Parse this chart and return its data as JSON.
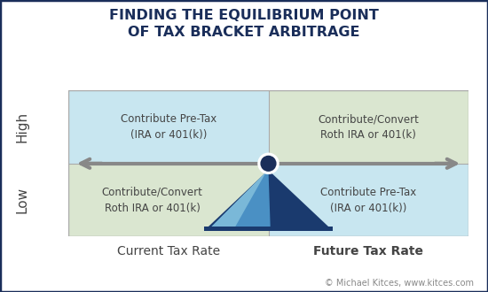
{
  "title_line1": "FINDING THE EQUILIBRIUM POINT",
  "title_line2": "OF TAX BRACKET ARBITRAGE",
  "title_color": "#1a2e5a",
  "title_fontsize": 11.5,
  "bg_color": "#ffffff",
  "border_color": "#1a2e5a",
  "border_lw": 2.5,
  "quadrant_top_left_color": "#c8e6f0",
  "quadrant_top_right_color": "#dae6d0",
  "quadrant_bot_left_color": "#dae6d0",
  "quadrant_bot_right_color": "#c8e6f0",
  "divider_color": "#aaaaaa",
  "arrow_color": "#888888",
  "arrow_lw": 3.0,
  "xlabel_left": "Current Tax Rate",
  "xlabel_right": "Future Tax Rate",
  "ylabel_top": "High",
  "ylabel_bot": "Low",
  "text_top_left": "Contribute Pre-Tax\n(IRA or 401(k))",
  "text_top_right": "Contribute/Convert\nRoth IRA or 401(k)",
  "text_bot_left": "Contribute/Convert\nRoth IRA or 401(k)",
  "text_bot_right": "Contribute Pre-Tax\n(IRA or 401(k))",
  "text_color": "#444444",
  "text_fontsize": 8.5,
  "circle_outer_color": "#ffffff",
  "circle_inner_color": "#1a2e5a",
  "fulcrum_dark": "#1a3a6e",
  "fulcrum_light": "#4a90c4",
  "fulcrum_lighter": "#7ab8d8",
  "xlabel_fontsize": 10,
  "ylabel_fontsize": 11,
  "footer_text": "© Michael Kitces, www.kitces.com",
  "footer_color": "#888888",
  "footer_url_color": "#3a7abf",
  "footer_fontsize": 7
}
